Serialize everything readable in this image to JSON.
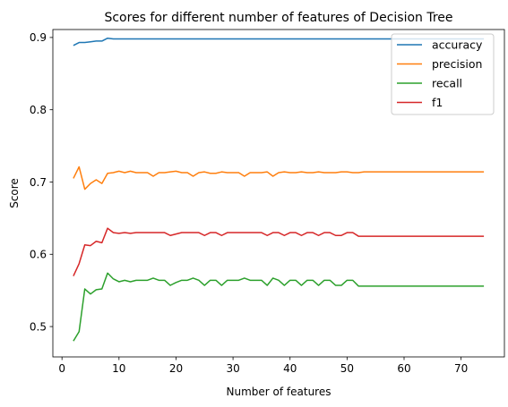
{
  "chart_data": {
    "type": "line",
    "title": "Scores for different number of features of Decision Tree",
    "xlabel": "Number of features",
    "ylabel": "Score",
    "xlim": [
      -1.6,
      77.6
    ],
    "ylim": [
      0.458,
      0.911
    ],
    "xticks": [
      0,
      10,
      20,
      30,
      40,
      50,
      60,
      70
    ],
    "yticks": [
      0.5,
      0.6,
      0.7,
      0.8,
      0.9
    ],
    "ytick_labels": [
      "0.5",
      "0.6",
      "0.7",
      "0.8",
      "0.9"
    ],
    "grid": false,
    "legend_position": "top-right",
    "x": [
      2,
      3,
      4,
      5,
      6,
      7,
      8,
      9,
      10,
      11,
      12,
      13,
      14,
      15,
      16,
      17,
      18,
      19,
      20,
      21,
      22,
      23,
      24,
      25,
      26,
      27,
      28,
      29,
      30,
      31,
      32,
      33,
      34,
      35,
      36,
      37,
      38,
      39,
      40,
      41,
      42,
      43,
      44,
      45,
      46,
      47,
      48,
      49,
      50,
      51,
      52,
      53,
      54,
      55,
      56,
      57,
      58,
      59,
      60,
      61,
      62,
      63,
      64,
      65,
      66,
      67,
      68,
      69,
      70,
      71,
      72,
      73,
      74
    ],
    "series": [
      {
        "name": "accuracy",
        "color": "#1f77b4",
        "values": [
          0.889,
          0.893,
          0.893,
          0.894,
          0.895,
          0.895,
          0.899,
          0.898,
          0.898,
          0.898,
          0.898,
          0.898,
          0.898,
          0.898,
          0.898,
          0.898,
          0.898,
          0.898,
          0.898,
          0.898,
          0.898,
          0.898,
          0.898,
          0.898,
          0.898,
          0.898,
          0.898,
          0.898,
          0.898,
          0.898,
          0.898,
          0.898,
          0.898,
          0.898,
          0.898,
          0.898,
          0.898,
          0.898,
          0.898,
          0.898,
          0.898,
          0.898,
          0.898,
          0.898,
          0.898,
          0.898,
          0.898,
          0.898,
          0.898,
          0.898,
          0.898,
          0.898,
          0.898,
          0.898,
          0.898,
          0.898,
          0.898,
          0.898,
          0.898,
          0.898,
          0.898,
          0.898,
          0.898,
          0.898,
          0.898,
          0.898,
          0.898,
          0.898,
          0.898,
          0.898,
          0.898,
          0.898,
          0.898
        ]
      },
      {
        "name": "precision",
        "color": "#ff7f0e",
        "values": [
          0.705,
          0.721,
          0.69,
          0.698,
          0.703,
          0.698,
          0.712,
          0.713,
          0.715,
          0.713,
          0.715,
          0.713,
          0.713,
          0.713,
          0.708,
          0.713,
          0.713,
          0.714,
          0.715,
          0.713,
          0.713,
          0.708,
          0.713,
          0.714,
          0.712,
          0.712,
          0.714,
          0.713,
          0.713,
          0.713,
          0.708,
          0.713,
          0.713,
          0.713,
          0.714,
          0.708,
          0.713,
          0.714,
          0.713,
          0.713,
          0.714,
          0.713,
          0.713,
          0.714,
          0.713,
          0.713,
          0.713,
          0.714,
          0.714,
          0.713,
          0.713,
          0.714,
          0.714,
          0.714,
          0.714,
          0.714,
          0.714,
          0.714,
          0.714,
          0.714,
          0.714,
          0.714,
          0.714,
          0.714,
          0.714,
          0.714,
          0.714,
          0.714,
          0.714,
          0.714,
          0.714,
          0.714,
          0.714
        ]
      },
      {
        "name": "recall",
        "color": "#2ca02c",
        "values": [
          0.48,
          0.493,
          0.552,
          0.545,
          0.551,
          0.552,
          0.574,
          0.566,
          0.562,
          0.564,
          0.562,
          0.564,
          0.564,
          0.564,
          0.567,
          0.564,
          0.564,
          0.557,
          0.561,
          0.564,
          0.564,
          0.567,
          0.564,
          0.557,
          0.564,
          0.564,
          0.557,
          0.564,
          0.564,
          0.564,
          0.567,
          0.564,
          0.564,
          0.564,
          0.557,
          0.567,
          0.564,
          0.557,
          0.564,
          0.564,
          0.557,
          0.564,
          0.564,
          0.557,
          0.564,
          0.564,
          0.557,
          0.557,
          0.564,
          0.564,
          0.556,
          0.556,
          0.556,
          0.556,
          0.556,
          0.556,
          0.556,
          0.556,
          0.556,
          0.556,
          0.556,
          0.556,
          0.556,
          0.556,
          0.556,
          0.556,
          0.556,
          0.556,
          0.556,
          0.556,
          0.556,
          0.556,
          0.556
        ]
      },
      {
        "name": "f1",
        "color": "#d62728",
        "values": [
          0.57,
          0.587,
          0.613,
          0.612,
          0.618,
          0.616,
          0.636,
          0.63,
          0.629,
          0.63,
          0.629,
          0.63,
          0.63,
          0.63,
          0.63,
          0.63,
          0.63,
          0.626,
          0.628,
          0.63,
          0.63,
          0.63,
          0.63,
          0.626,
          0.63,
          0.63,
          0.626,
          0.63,
          0.63,
          0.63,
          0.63,
          0.63,
          0.63,
          0.63,
          0.626,
          0.63,
          0.63,
          0.626,
          0.63,
          0.63,
          0.626,
          0.63,
          0.63,
          0.626,
          0.63,
          0.63,
          0.626,
          0.626,
          0.63,
          0.63,
          0.625,
          0.625,
          0.625,
          0.625,
          0.625,
          0.625,
          0.625,
          0.625,
          0.625,
          0.625,
          0.625,
          0.625,
          0.625,
          0.625,
          0.625,
          0.625,
          0.625,
          0.625,
          0.625,
          0.625,
          0.625,
          0.625,
          0.625
        ]
      }
    ]
  }
}
